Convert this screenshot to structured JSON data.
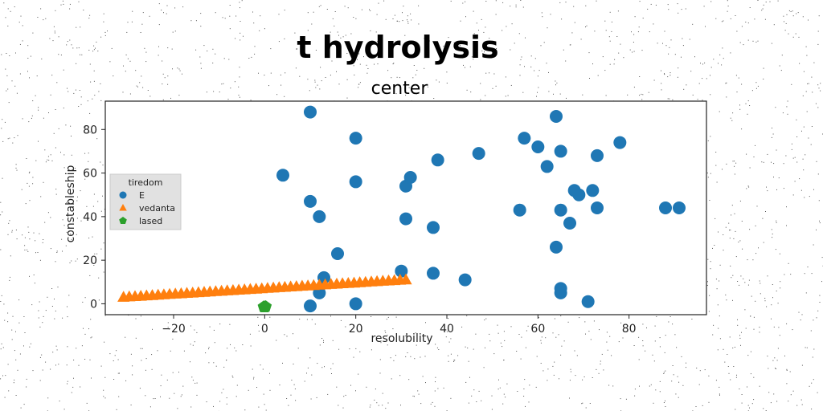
{
  "chart_data": {
    "type": "scatter",
    "title": "t hydrolysis",
    "subtitle": "center",
    "xlabel": "resolubility",
    "ylabel": "constableship",
    "xlim": [
      -35,
      97
    ],
    "ylim": [
      -5,
      93
    ],
    "xticks": [
      -20,
      0,
      20,
      40,
      60,
      80
    ],
    "yticks": [
      0,
      20,
      40,
      60,
      80
    ],
    "grid": false,
    "legend": {
      "title": "tiredom",
      "placement": "center-left"
    },
    "series": [
      {
        "name": "E",
        "marker": "circle",
        "color": "#1f77b4",
        "points": [
          [
            10,
            88
          ],
          [
            20,
            76
          ],
          [
            4,
            59
          ],
          [
            10,
            47
          ],
          [
            12,
            40
          ],
          [
            20,
            56
          ],
          [
            31,
            54
          ],
          [
            32,
            58
          ],
          [
            38,
            66
          ],
          [
            47,
            69
          ],
          [
            57,
            76
          ],
          [
            60,
            72
          ],
          [
            62,
            63
          ],
          [
            64,
            86
          ],
          [
            65,
            70
          ],
          [
            73,
            68
          ],
          [
            78,
            74
          ],
          [
            37,
            35
          ],
          [
            31,
            39
          ],
          [
            56,
            43
          ],
          [
            65,
            43
          ],
          [
            67,
            37
          ],
          [
            68,
            52
          ],
          [
            69,
            50
          ],
          [
            72,
            52
          ],
          [
            73,
            44
          ],
          [
            88,
            44
          ],
          [
            91,
            44
          ],
          [
            16,
            23
          ],
          [
            13,
            12
          ],
          [
            12,
            5
          ],
          [
            10,
            -1
          ],
          [
            20,
            0
          ],
          [
            30,
            15
          ],
          [
            37,
            14
          ],
          [
            44,
            11
          ],
          [
            64,
            26
          ],
          [
            65,
            7
          ],
          [
            65,
            5
          ],
          [
            71,
            1
          ]
        ]
      },
      {
        "name": "vedanta",
        "marker": "triangle",
        "color": "#ff7f0e",
        "x_range": [
          -31,
          31
        ],
        "y_range": [
          3,
          11
        ],
        "n_points": 50
      },
      {
        "name": "lased",
        "marker": "pentagon",
        "color": "#2ca02c",
        "points": [
          [
            0,
            -1.5
          ],
          [
            0.2,
            -1.3
          ],
          [
            -0.2,
            -1.4
          ]
        ]
      }
    ]
  }
}
